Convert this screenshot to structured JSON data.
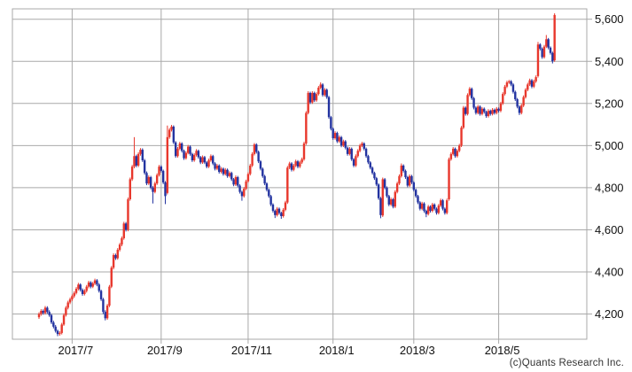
{
  "meta": {
    "copyright": "(c)Quants Research Inc."
  },
  "chart_data": {
    "type": "candlestick",
    "title": "",
    "legend": "none",
    "grid": true,
    "colors": {
      "up": "#e8372c",
      "down": "#2333a0",
      "grid": "#a9a9a9",
      "border": "#a9a9a9",
      "label_text": "#111111",
      "copyright_text": "#333333",
      "background": "#ffffff"
    },
    "y_axis": {
      "side": "right",
      "visible_range": [
        4080,
        5650
      ],
      "ticks": [
        {
          "value": 5600,
          "label": "5,600"
        },
        {
          "value": 5400,
          "label": "5,400"
        },
        {
          "value": 5200,
          "label": "5,200"
        },
        {
          "value": 5000,
          "label": "5,000"
        },
        {
          "value": 4800,
          "label": "4,800"
        },
        {
          "value": 4600,
          "label": "4,600"
        },
        {
          "value": 4400,
          "label": "4,400"
        },
        {
          "value": 4200,
          "label": "4,200"
        }
      ]
    },
    "x_axis": {
      "unit": "trading-day index, mid-June 2017 through early June 2018",
      "ticks": [
        {
          "index": 16,
          "label": "2017/7"
        },
        {
          "index": 59,
          "label": "2017/9"
        },
        {
          "index": 101,
          "label": "2017/11"
        },
        {
          "index": 142,
          "label": "2018/1"
        },
        {
          "index": 181,
          "label": "2018/3"
        },
        {
          "index": 222,
          "label": "2018/5"
        }
      ]
    },
    "candles_format": [
      "open",
      "high",
      "low",
      "close"
    ],
    "candles": [
      [
        4185,
        4208,
        4177,
        4200
      ],
      [
        4200,
        4223,
        4192,
        4215
      ],
      [
        4215,
        4222,
        4197,
        4205
      ],
      [
        4205,
        4238,
        4198,
        4230
      ],
      [
        4230,
        4237,
        4202,
        4210
      ],
      [
        4210,
        4218,
        4187,
        4195
      ],
      [
        4195,
        4201,
        4152,
        4160
      ],
      [
        4160,
        4168,
        4132,
        4140
      ],
      [
        4140,
        4148,
        4112,
        4120
      ],
      [
        4120,
        4126,
        4095,
        4105
      ],
      [
        4105,
        4118,
        4097,
        4110
      ],
      [
        4110,
        4158,
        4103,
        4150
      ],
      [
        4150,
        4203,
        4144,
        4195
      ],
      [
        4195,
        4238,
        4188,
        4230
      ],
      [
        4230,
        4263,
        4222,
        4255
      ],
      [
        4255,
        4278,
        4247,
        4270
      ],
      [
        4270,
        4293,
        4262,
        4285
      ],
      [
        4285,
        4308,
        4277,
        4300
      ],
      [
        4300,
        4328,
        4293,
        4320
      ],
      [
        4320,
        4348,
        4312,
        4340
      ],
      [
        4340,
        4346,
        4307,
        4315
      ],
      [
        4315,
        4322,
        4287,
        4295
      ],
      [
        4295,
        4318,
        4288,
        4310
      ],
      [
        4310,
        4338,
        4302,
        4330
      ],
      [
        4330,
        4358,
        4322,
        4350
      ],
      [
        4350,
        4356,
        4322,
        4330
      ],
      [
        4330,
        4353,
        4323,
        4345
      ],
      [
        4345,
        4368,
        4337,
        4360
      ],
      [
        4360,
        4366,
        4332,
        4340
      ],
      [
        4340,
        4347,
        4302,
        4310
      ],
      [
        4310,
        4316,
        4262,
        4270
      ],
      [
        4270,
        4277,
        4200,
        4210
      ],
      [
        4210,
        4218,
        4170,
        4180
      ],
      [
        4180,
        4248,
        4173,
        4240
      ],
      [
        4240,
        4338,
        4233,
        4330
      ],
      [
        4330,
        4428,
        4323,
        4420
      ],
      [
        4420,
        4488,
        4412,
        4480
      ],
      [
        4480,
        4487,
        4457,
        4465
      ],
      [
        4465,
        4513,
        4458,
        4505
      ],
      [
        4505,
        4538,
        4497,
        4530
      ],
      [
        4530,
        4568,
        4522,
        4560
      ],
      [
        4560,
        4638,
        4553,
        4630
      ],
      [
        4630,
        4637,
        4592,
        4600
      ],
      [
        4600,
        4753,
        4593,
        4745
      ],
      [
        4745,
        4848,
        4738,
        4840
      ],
      [
        4840,
        4908,
        4832,
        4900
      ],
      [
        4900,
        5040,
        4892,
        4950
      ],
      [
        4950,
        4957,
        4897,
        4905
      ],
      [
        4905,
        4968,
        4898,
        4960
      ],
      [
        4960,
        4988,
        4952,
        4980
      ],
      [
        4980,
        4987,
        4922,
        4930
      ],
      [
        4930,
        4937,
        4862,
        4870
      ],
      [
        4870,
        4877,
        4812,
        4820
      ],
      [
        4820,
        4858,
        4813,
        4850
      ],
      [
        4850,
        4856,
        4792,
        4800
      ],
      [
        4800,
        4807,
        4725,
        4780
      ],
      [
        4780,
        4828,
        4773,
        4820
      ],
      [
        4820,
        4868,
        4813,
        4860
      ],
      [
        4860,
        4908,
        4853,
        4900
      ],
      [
        4900,
        4907,
        4872,
        4880
      ],
      [
        4880,
        4886,
        4817,
        4825
      ],
      [
        4825,
        4831,
        4722,
        4760
      ],
      [
        4775,
        5095,
        4768,
        5040
      ],
      [
        5040,
        5083,
        5032,
        5075
      ],
      [
        5075,
        5098,
        5067,
        5090
      ],
      [
        5090,
        5096,
        5007,
        5015
      ],
      [
        5015,
        5021,
        4942,
        4950
      ],
      [
        4950,
        4993,
        4943,
        4985
      ],
      [
        4985,
        5018,
        4978,
        5010
      ],
      [
        5010,
        5016,
        4967,
        4975
      ],
      [
        4975,
        4981,
        4932,
        4940
      ],
      [
        4940,
        4973,
        4933,
        4965
      ],
      [
        4965,
        5003,
        4958,
        4995
      ],
      [
        4995,
        5001,
        4952,
        4960
      ],
      [
        4960,
        4966,
        4922,
        4930
      ],
      [
        4930,
        4963,
        4923,
        4955
      ],
      [
        4955,
        4983,
        4948,
        4975
      ],
      [
        4975,
        4981,
        4937,
        4945
      ],
      [
        4945,
        4951,
        4912,
        4920
      ],
      [
        4920,
        4953,
        4913,
        4945
      ],
      [
        4945,
        4951,
        4912,
        4920
      ],
      [
        4920,
        4926,
        4892,
        4900
      ],
      [
        4900,
        4938,
        4893,
        4930
      ],
      [
        4930,
        4958,
        4923,
        4950
      ],
      [
        4950,
        4956,
        4907,
        4915
      ],
      [
        4915,
        4921,
        4882,
        4890
      ],
      [
        4890,
        4913,
        4883,
        4905
      ],
      [
        4905,
        4911,
        4867,
        4875
      ],
      [
        4875,
        4898,
        4868,
        4890
      ],
      [
        4890,
        4896,
        4857,
        4865
      ],
      [
        4865,
        4893,
        4858,
        4885
      ],
      [
        4885,
        4891,
        4847,
        4855
      ],
      [
        4855,
        4878,
        4848,
        4870
      ],
      [
        4870,
        4876,
        4832,
        4840
      ],
      [
        4840,
        4846,
        4807,
        4815
      ],
      [
        4815,
        4858,
        4808,
        4850
      ],
      [
        4850,
        4856,
        4802,
        4810
      ],
      [
        4810,
        4816,
        4772,
        4780
      ],
      [
        4780,
        4786,
        4738,
        4760
      ],
      [
        4760,
        4803,
        4753,
        4795
      ],
      [
        4795,
        4838,
        4788,
        4830
      ],
      [
        4830,
        4873,
        4823,
        4865
      ],
      [
        4865,
        4913,
        4858,
        4905
      ],
      [
        4905,
        4968,
        4898,
        4960
      ],
      [
        4960,
        5012,
        4953,
        5005
      ],
      [
        5005,
        5011,
        4962,
        4970
      ],
      [
        4970,
        4976,
        4917,
        4925
      ],
      [
        4925,
        4931,
        4882,
        4890
      ],
      [
        4890,
        4896,
        4847,
        4855
      ],
      [
        4855,
        4861,
        4812,
        4820
      ],
      [
        4820,
        4826,
        4782,
        4790
      ],
      [
        4790,
        4796,
        4752,
        4760
      ],
      [
        4760,
        4766,
        4712,
        4720
      ],
      [
        4720,
        4726,
        4682,
        4690
      ],
      [
        4690,
        4696,
        4656,
        4670
      ],
      [
        4670,
        4708,
        4663,
        4700
      ],
      [
        4700,
        4706,
        4672,
        4680
      ],
      [
        4680,
        4686,
        4652,
        4665
      ],
      [
        4665,
        4703,
        4658,
        4695
      ],
      [
        4695,
        4738,
        4688,
        4730
      ],
      [
        4730,
        4903,
        4723,
        4895
      ],
      [
        4895,
        4923,
        4888,
        4915
      ],
      [
        4915,
        4921,
        4877,
        4885
      ],
      [
        4885,
        4913,
        4878,
        4905
      ],
      [
        4905,
        4933,
        4898,
        4925
      ],
      [
        4925,
        4931,
        4892,
        4900
      ],
      [
        4900,
        4928,
        4893,
        4920
      ],
      [
        4920,
        4943,
        4913,
        4935
      ],
      [
        4935,
        5018,
        4928,
        5010
      ],
      [
        5010,
        5163,
        5003,
        5155
      ],
      [
        5155,
        5258,
        5148,
        5250
      ],
      [
        5250,
        5256,
        5197,
        5205
      ],
      [
        5205,
        5258,
        5198,
        5250
      ],
      [
        5250,
        5256,
        5207,
        5215
      ],
      [
        5215,
        5253,
        5208,
        5245
      ],
      [
        5245,
        5283,
        5238,
        5275
      ],
      [
        5275,
        5300,
        5268,
        5290
      ],
      [
        5290,
        5296,
        5232,
        5240
      ],
      [
        5240,
        5273,
        5233,
        5265
      ],
      [
        5265,
        5271,
        5222,
        5230
      ],
      [
        5230,
        5236,
        5127,
        5135
      ],
      [
        5135,
        5141,
        5072,
        5080
      ],
      [
        5080,
        5086,
        5027,
        5035
      ],
      [
        5035,
        5068,
        5028,
        5060
      ],
      [
        5060,
        5066,
        5012,
        5020
      ],
      [
        5020,
        5048,
        5013,
        5040
      ],
      [
        5040,
        5046,
        4992,
        5000
      ],
      [
        5000,
        5028,
        4993,
        5020
      ],
      [
        5020,
        5026,
        4982,
        4990
      ],
      [
        4990,
        4996,
        4952,
        4960
      ],
      [
        4960,
        4993,
        4953,
        4985
      ],
      [
        4985,
        4991,
        4927,
        4935
      ],
      [
        4935,
        4941,
        4897,
        4905
      ],
      [
        4905,
        4958,
        4898,
        4950
      ],
      [
        4950,
        4983,
        4943,
        4975
      ],
      [
        4975,
        5008,
        4968,
        5000
      ],
      [
        5000,
        5018,
        4993,
        5010
      ],
      [
        5010,
        5016,
        4977,
        4985
      ],
      [
        4985,
        4991,
        4942,
        4950
      ],
      [
        4950,
        4956,
        4912,
        4920
      ],
      [
        4920,
        4926,
        4887,
        4895
      ],
      [
        4895,
        4901,
        4862,
        4870
      ],
      [
        4870,
        4876,
        4837,
        4845
      ],
      [
        4845,
        4851,
        4807,
        4815
      ],
      [
        4815,
        4821,
        4742,
        4750
      ],
      [
        4750,
        4756,
        4655,
        4670
      ],
      [
        4668,
        4848,
        4661,
        4840
      ],
      [
        4840,
        4846,
        4792,
        4800
      ],
      [
        4800,
        4806,
        4752,
        4760
      ],
      [
        4760,
        4766,
        4712,
        4720
      ],
      [
        4720,
        4753,
        4713,
        4745
      ],
      [
        4745,
        4751,
        4702,
        4710
      ],
      [
        4710,
        4788,
        4703,
        4780
      ],
      [
        4780,
        4828,
        4773,
        4820
      ],
      [
        4820,
        4863,
        4813,
        4855
      ],
      [
        4855,
        4915,
        4848,
        4905
      ],
      [
        4905,
        4911,
        4872,
        4880
      ],
      [
        4880,
        4886,
        4842,
        4850
      ],
      [
        4850,
        4856,
        4802,
        4810
      ],
      [
        4810,
        4863,
        4803,
        4855
      ],
      [
        4855,
        4861,
        4817,
        4825
      ],
      [
        4825,
        4831,
        4782,
        4790
      ],
      [
        4790,
        4796,
        4752,
        4760
      ],
      [
        4760,
        4766,
        4722,
        4730
      ],
      [
        4730,
        4736,
        4692,
        4700
      ],
      [
        4700,
        4733,
        4693,
        4725
      ],
      [
        4725,
        4731,
        4682,
        4690
      ],
      [
        4690,
        4696,
        4660,
        4675
      ],
      [
        4675,
        4718,
        4668,
        4710
      ],
      [
        4710,
        4716,
        4682,
        4690
      ],
      [
        4690,
        4728,
        4683,
        4720
      ],
      [
        4720,
        4726,
        4692,
        4700
      ],
      [
        4700,
        4706,
        4672,
        4680
      ],
      [
        4680,
        4723,
        4673,
        4715
      ],
      [
        4715,
        4748,
        4708,
        4740
      ],
      [
        4740,
        4746,
        4692,
        4700
      ],
      [
        4700,
        4706,
        4672,
        4680
      ],
      [
        4680,
        4748,
        4673,
        4740
      ],
      [
        4745,
        4943,
        4738,
        4935
      ],
      [
        4935,
        4968,
        4928,
        4960
      ],
      [
        4960,
        4993,
        4953,
        4985
      ],
      [
        4985,
        4991,
        4942,
        4950
      ],
      [
        4950,
        4983,
        4943,
        4975
      ],
      [
        4975,
        5008,
        4968,
        5000
      ],
      [
        5000,
        5093,
        4993,
        5085
      ],
      [
        5085,
        5188,
        5078,
        5180
      ],
      [
        5180,
        5186,
        5142,
        5150
      ],
      [
        5150,
        5248,
        5143,
        5240
      ],
      [
        5240,
        5278,
        5233,
        5270
      ],
      [
        5270,
        5276,
        5217,
        5225
      ],
      [
        5225,
        5231,
        5172,
        5180
      ],
      [
        5180,
        5186,
        5147,
        5155
      ],
      [
        5155,
        5193,
        5148,
        5185
      ],
      [
        5185,
        5191,
        5142,
        5150
      ],
      [
        5150,
        5183,
        5143,
        5175
      ],
      [
        5175,
        5181,
        5152,
        5160
      ],
      [
        5160,
        5166,
        5132,
        5140
      ],
      [
        5140,
        5173,
        5133,
        5165
      ],
      [
        5165,
        5171,
        5142,
        5150
      ],
      [
        5150,
        5178,
        5143,
        5170
      ],
      [
        5170,
        5176,
        5147,
        5155
      ],
      [
        5155,
        5183,
        5148,
        5175
      ],
      [
        5175,
        5181,
        5157,
        5165
      ],
      [
        5165,
        5208,
        5158,
        5200
      ],
      [
        5200,
        5253,
        5193,
        5245
      ],
      [
        5245,
        5288,
        5238,
        5280
      ],
      [
        5280,
        5308,
        5273,
        5300
      ],
      [
        5300,
        5312,
        5293,
        5305
      ],
      [
        5305,
        5311,
        5282,
        5290
      ],
      [
        5290,
        5296,
        5247,
        5255
      ],
      [
        5255,
        5261,
        5212,
        5220
      ],
      [
        5220,
        5226,
        5177,
        5185
      ],
      [
        5185,
        5191,
        5145,
        5155
      ],
      [
        5155,
        5198,
        5148,
        5190
      ],
      [
        5190,
        5238,
        5183,
        5230
      ],
      [
        5230,
        5273,
        5223,
        5265
      ],
      [
        5265,
        5298,
        5258,
        5290
      ],
      [
        5290,
        5318,
        5283,
        5310
      ],
      [
        5310,
        5316,
        5272,
        5280
      ],
      [
        5280,
        5313,
        5273,
        5305
      ],
      [
        5305,
        5333,
        5298,
        5325
      ],
      [
        5330,
        5492,
        5323,
        5480
      ],
      [
        5480,
        5486,
        5452,
        5460
      ],
      [
        5460,
        5466,
        5412,
        5420
      ],
      [
        5420,
        5478,
        5413,
        5470
      ],
      [
        5470,
        5525,
        5463,
        5505
      ],
      [
        5505,
        5511,
        5457,
        5465
      ],
      [
        5465,
        5471,
        5432,
        5440
      ],
      [
        5440,
        5446,
        5390,
        5400
      ],
      [
        5405,
        5628,
        5398,
        5620
      ]
    ]
  }
}
